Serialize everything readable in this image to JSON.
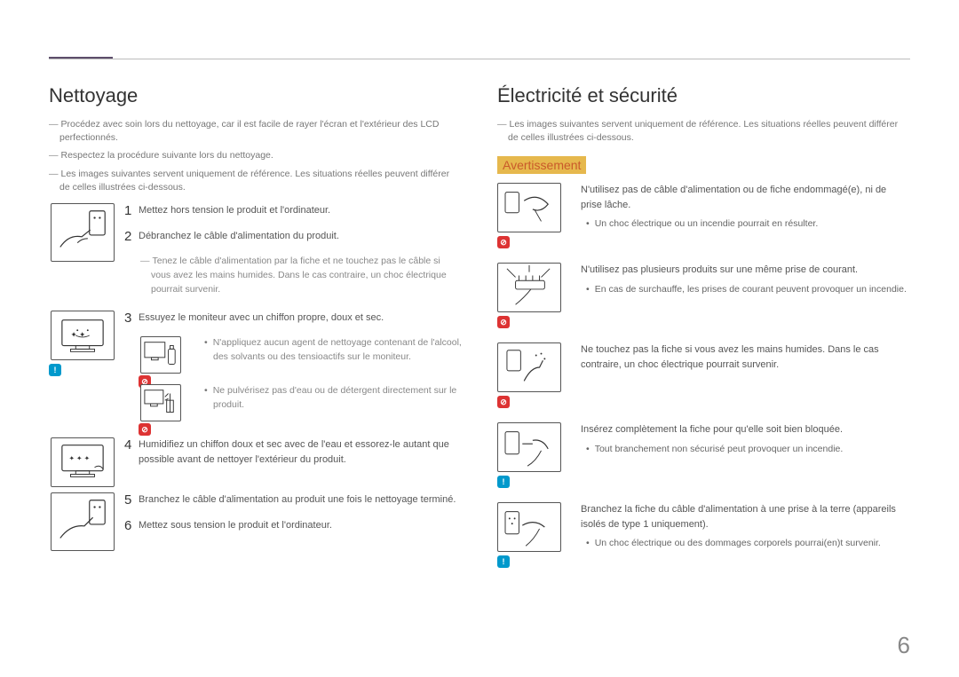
{
  "page_number": "6",
  "colors": {
    "accent": "#5d4e6b",
    "warning_bg": "#e6b84d",
    "warning_text": "#c95a2a",
    "info_badge": "#0099cc",
    "prohibit_badge": "#d33"
  },
  "left": {
    "heading": "Nettoyage",
    "notes": [
      "Procédez avec soin lors du nettoyage, car il est facile de rayer l'écran et l'extérieur des LCD perfectionnés.",
      "Respectez la procédure suivante lors du nettoyage.",
      "Les images suivantes servent uniquement de référence. Les situations réelles peuvent différer de celles illustrées ci-dessous."
    ],
    "step1": "Mettez hors tension le produit et l'ordinateur.",
    "step2": "Débranchez le câble d'alimentation du produit.",
    "step2_sub": "Tenez le câble d'alimentation par la fiche et ne touchez pas le câble si vous avez les mains humides. Dans le cas contraire, un choc électrique pourrait survenir.",
    "step3": "Essuyez le moniteur avec un chiffon propre, doux et sec.",
    "step3_b1": "N'appliquez aucun agent de nettoyage contenant de l'alcool, des solvants ou des tensioactifs sur le moniteur.",
    "step3_b2": "Ne pulvérisez pas d'eau ou de détergent directement sur le produit.",
    "step4": "Humidifiez un chiffon doux et sec avec de l'eau et essorez-le autant que possible avant de nettoyer l'extérieur du produit.",
    "step5": "Branchez le câble d'alimentation au produit une fois le nettoyage terminé.",
    "step6": "Mettez sous tension le produit et l'ordinateur."
  },
  "right": {
    "heading": "Électricité et sécurité",
    "note": "Les images suivantes servent uniquement de référence. Les situations réelles peuvent différer de celles illustrées ci-dessous.",
    "warning_label": "Avertissement",
    "items": [
      {
        "badge": "prohibit",
        "text": "N'utilisez pas de câble d'alimentation ou de fiche endommagé(e), ni de prise lâche.",
        "bullet": "Un choc électrique ou un incendie pourrait en résulter."
      },
      {
        "badge": "prohibit",
        "text": "N'utilisez pas plusieurs produits sur une même prise de courant.",
        "bullet": "En cas de surchauffe, les prises de courant peuvent provoquer un incendie."
      },
      {
        "badge": "prohibit",
        "text": "Ne touchez pas la fiche si vous avez les mains humides. Dans le cas contraire, un choc électrique pourrait survenir.",
        "bullet": ""
      },
      {
        "badge": "info",
        "text": "Insérez complètement la fiche pour qu'elle soit bien bloquée.",
        "bullet": "Tout branchement non sécurisé peut provoquer un incendie."
      },
      {
        "badge": "info",
        "text": "Branchez la fiche du câble d'alimentation à une prise à la terre (appareils isolés de type 1 uniquement).",
        "bullet": "Un choc électrique ou des dommages corporels pourrai(en)t survenir."
      }
    ]
  }
}
